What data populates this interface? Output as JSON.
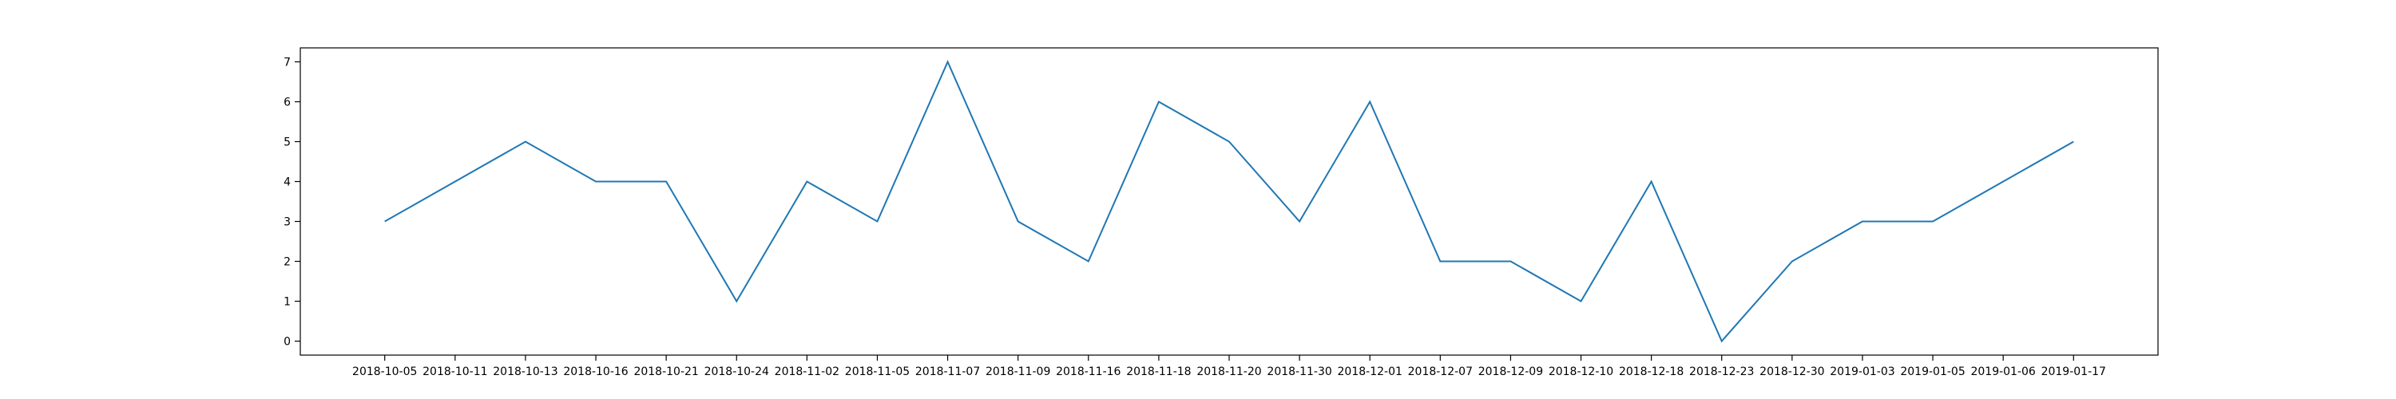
{
  "chart_data": {
    "type": "line",
    "categories": [
      "2018-10-05",
      "2018-10-11",
      "2018-10-13",
      "2018-10-16",
      "2018-10-21",
      "2018-10-24",
      "2018-11-02",
      "2018-11-05",
      "2018-11-07",
      "2018-11-09",
      "2018-11-16",
      "2018-11-18",
      "2018-11-20",
      "2018-11-30",
      "2018-12-01",
      "2018-12-07",
      "2018-12-09",
      "2018-12-10",
      "2018-12-18",
      "2018-12-23",
      "2018-12-30",
      "2019-01-03",
      "2019-01-05",
      "2019-01-06",
      "2019-01-17"
    ],
    "values": [
      3,
      4,
      5,
      4,
      4,
      1,
      4,
      3,
      7,
      3,
      2,
      6,
      5,
      3,
      6,
      2,
      2,
      1,
      4,
      0,
      2,
      3,
      3,
      4,
      5
    ],
    "yticks": [
      0,
      1,
      2,
      3,
      4,
      5,
      6,
      7
    ],
    "ylim": [
      -0.35,
      7.35
    ],
    "title": "",
    "xlabel": "",
    "ylabel": "",
    "grid": false,
    "line_color": "#1f77b4"
  }
}
